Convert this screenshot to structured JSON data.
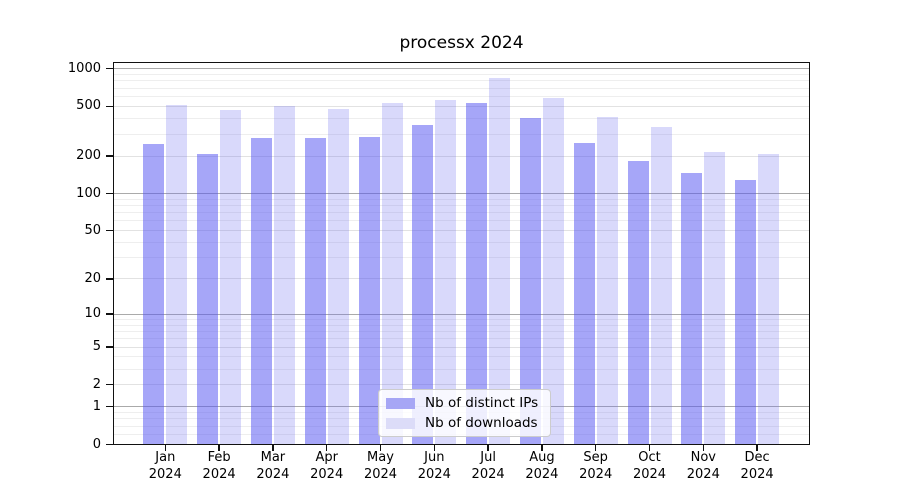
{
  "chart_data": {
    "type": "bar",
    "title": "processx 2024",
    "categories": [
      "Jan",
      "Feb",
      "Mar",
      "Apr",
      "May",
      "Jun",
      "Jul",
      "Aug",
      "Sep",
      "Oct",
      "Nov",
      "Dec"
    ],
    "category_year": "2024",
    "series": [
      {
        "name": "Nb of distinct IPs",
        "color": "#a6a6f5",
        "overlay_color": "rgba(85,85,241,0.52)",
        "values": [
          249,
          207,
          280,
          280,
          286,
          356,
          536,
          407,
          255,
          184,
          146,
          129
        ]
      },
      {
        "name": "Nb of downloads",
        "color": "#dcdcf8",
        "overlay_color": "rgba(110,110,240,0.26)",
        "values": [
          514,
          469,
          507,
          480,
          530,
          564,
          840,
          582,
          409,
          340,
          217,
          208
        ]
      }
    ],
    "yscale": "log1p",
    "ylim": [
      0,
      1125
    ],
    "yticks": [
      1000,
      500,
      200,
      100,
      50,
      20,
      10,
      5,
      2,
      1,
      0
    ],
    "ytick_labels": [
      "1000",
      "500",
      "200",
      "100",
      "50",
      "20",
      "10",
      "5",
      "2",
      "1",
      "0"
    ],
    "major_grid_values": [
      1,
      10,
      100,
      1000
    ],
    "labeled_grid_values": [
      2,
      5,
      20,
      50,
      200,
      500
    ],
    "minor_grid_values": [
      0.2,
      0.4,
      0.6,
      0.8,
      3,
      4,
      6,
      7,
      8,
      9,
      30,
      40,
      60,
      70,
      80,
      90,
      300,
      400,
      600,
      700,
      800,
      900
    ],
    "grid": true,
    "legend_position": "lower-center",
    "colors": {
      "major_grid": "#aaaaaa",
      "labeled_grid": "#e2e2e2",
      "minor_grid": "#eeeeee",
      "axis": "#111111"
    }
  }
}
